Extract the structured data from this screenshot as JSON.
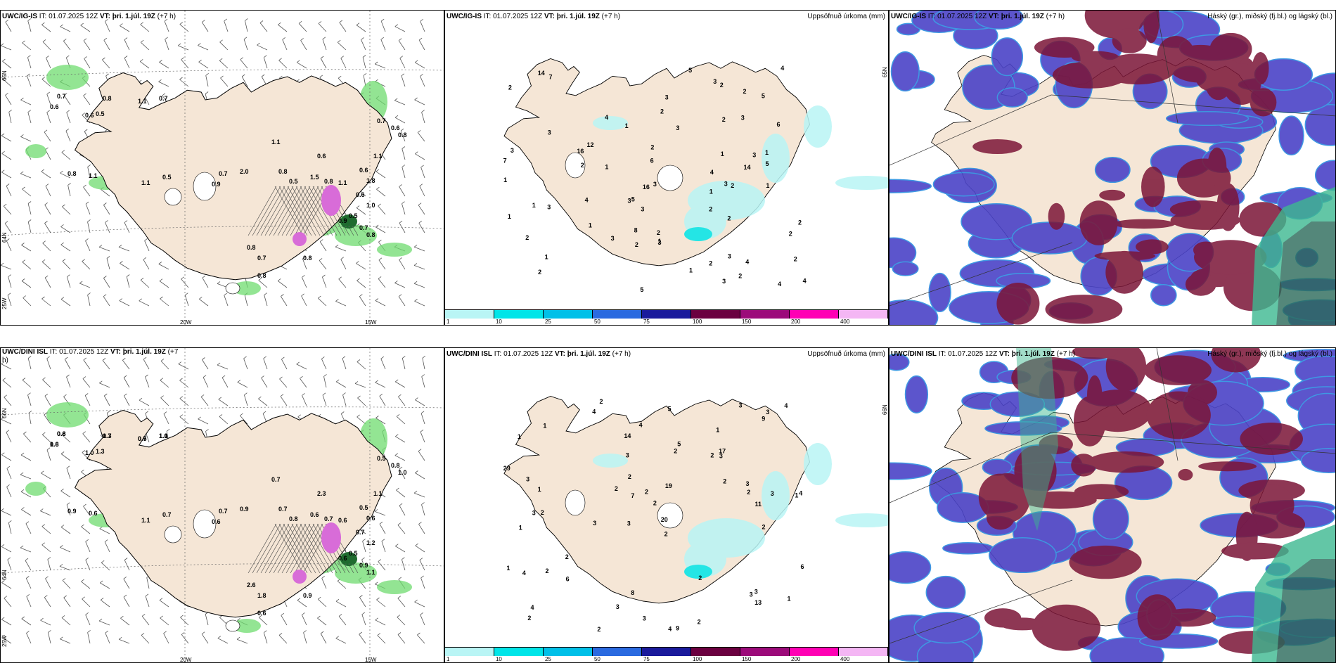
{
  "colors": {
    "land": "#f5e6d6",
    "precip_light": "#b9f5f5",
    "precip_mid": "#00e5e8",
    "high_cloud": "#7b1537",
    "mid_cloud": "#4b43c7",
    "low_cloud": "#3db890",
    "green": "#6fdc6f",
    "pink": "#d86cd8"
  },
  "rows": [
    {
      "wind": {
        "header_model": "UWC/IG-IS",
        "header_it": "IT: 01.07.2025 12Z",
        "header_vt": "VT: þri. 1.júl. 19Z",
        "header_lead": "(+7 h)",
        "lat_labels": [
          "65N",
          "64N",
          "25W"
        ],
        "lon_labels": [
          "20W",
          "15W"
        ],
        "labels": [
          "0.7",
          "0.6",
          "0.8",
          "1.1",
          "0.7",
          "0.6",
          "0.5",
          "1.1",
          "0.7",
          "0.6",
          "0.8",
          "1.1",
          "2.0",
          "1.1",
          "0.5",
          "1.1",
          "0.8",
          "0.9",
          "0.7",
          "0.8",
          "0.5",
          "1.5",
          "0.8",
          "1.1",
          "0.6",
          "1.8",
          "0.6",
          "1.0",
          "0.5",
          "0.9",
          "0.7",
          "0.8",
          "0.8",
          "0.7",
          "0.8",
          "0.6",
          "0.8"
        ]
      },
      "precip": {
        "header_model": "UWC/IG-IS",
        "header_it": "IT: 01.07.2025 12Z",
        "header_vt": "VT: þri. 1.júl. 19Z",
        "header_lead": "(+7 h)",
        "title": "Uppsöfnuð úrkoma (mm)",
        "lat_label": "65N",
        "values": [
          "2",
          "2",
          "3",
          "2",
          "2",
          "3",
          "1",
          "2",
          "2",
          "2",
          "3",
          "1",
          "1",
          "2",
          "1",
          "4",
          "5",
          "1",
          "2",
          "1",
          "3",
          "1",
          "1",
          "3",
          "5",
          "1",
          "3",
          "2",
          "4",
          "3",
          "6",
          "5",
          "3",
          "3",
          "1",
          "2",
          "3",
          "3",
          "2",
          "3",
          "5",
          "4",
          "3",
          "5",
          "7",
          "4",
          "4",
          "12",
          "16",
          "7",
          "8",
          "16",
          "6",
          "4",
          "2",
          "2",
          "2",
          "14",
          "14",
          "1",
          "1",
          "2",
          "2",
          "1",
          "3",
          "2",
          "4",
          "3",
          "2",
          "3"
        ],
        "colorbar": {
          "colors": [
            "#b9f5f5",
            "#00e5e8",
            "#00c0e8",
            "#2a6ae0",
            "#1a1a9c",
            "#6b0040",
            "#9c0a7a",
            "#ff00b4",
            "#f4b6f4"
          ],
          "ticks": [
            "1",
            "10",
            "25",
            "50",
            "75",
            "100",
            "150",
            "200",
            "400"
          ]
        }
      },
      "cloud": {
        "header_model": "UWC/IG-IS",
        "header_it": "IT: 01.07.2025 12Z",
        "header_vt": "VT: þri. 1.júl. 19Z",
        "header_lead": "(+7 h)",
        "title": "Háský (gr.), miðský (fj.bl.) og lágský (bl.)"
      }
    },
    {
      "wind": {
        "header_model": "UWC/DINI ISL",
        "header_it": "IT: 01.07.2025 12Z",
        "header_vt": "VT: þri. 1.júl. 19Z",
        "header_lead": "(+7",
        "header_wrap": "h)",
        "lat_labels": [
          "66N",
          "64N",
          "25W"
        ],
        "lon_labels": [
          "20W",
          "15W"
        ],
        "labels": [
          "0.8",
          "0.8",
          "0.7",
          "0.7",
          "1.1",
          "1.0",
          "1.3",
          "0.7",
          "0.5",
          "0.8",
          "1.0",
          "1.1",
          "0.9",
          "1.1",
          "0.7",
          "0.6",
          "0.9",
          "0.6",
          "0.7",
          "0.7",
          "0.8",
          "0.6",
          "0.7",
          "0.6",
          "0.5",
          "0.6",
          "0.7",
          "1.2",
          "0.5",
          "0.6",
          "0.9",
          "1.1",
          "2.6",
          "1.8",
          "0.9",
          "2.3",
          "0.6",
          "0.6",
          "1.6",
          "1.3",
          "0.5",
          "1.0"
        ]
      },
      "precip": {
        "header_model": "UWC/DINI ISL",
        "header_it": "IT: 01.07.2025 12Z",
        "header_vt": "VT: þri. 1.júl. 19Z",
        "header_lead": "(+7 h)",
        "title": "Uppsöfnuð úrkoma (mm)",
        "lat_label": "66N",
        "values": [
          "2",
          "1",
          "1",
          "3",
          "2",
          "2",
          "1",
          "2",
          "1",
          "2",
          "2",
          "2",
          "4",
          "3",
          "4",
          "9",
          "8",
          "3",
          "2",
          "2",
          "1",
          "3",
          "4",
          "3",
          "1",
          "3",
          "7",
          "2",
          "3",
          "4",
          "3",
          "5",
          "2",
          "2",
          "2",
          "6",
          "3",
          "3",
          "4",
          "4",
          "4",
          "2",
          "2",
          "1",
          "3",
          "3",
          "13",
          "17",
          "29",
          "20",
          "14",
          "11",
          "19",
          "9",
          "5",
          "6",
          "2",
          "2",
          "3",
          "3",
          "1",
          "2"
        ],
        "colorbar": {
          "colors": [
            "#b9f5f5",
            "#00e5e8",
            "#00c0e8",
            "#2a6ae0",
            "#1a1a9c",
            "#6b0040",
            "#9c0a7a",
            "#ff00b4",
            "#f4b6f4"
          ],
          "ticks": [
            "1",
            "10",
            "25",
            "50",
            "75",
            "100",
            "150",
            "200",
            "400"
          ]
        }
      },
      "cloud": {
        "header_model": "UWC/DINI ISL",
        "header_it": "IT: 01.07.2025 12Z",
        "header_vt": "VT: þri. 1.júl. 19Z",
        "header_lead": "(+7 h)",
        "title": "Háský (gr.), miðský (fj.bl.) og lágský (bl.)"
      }
    }
  ]
}
